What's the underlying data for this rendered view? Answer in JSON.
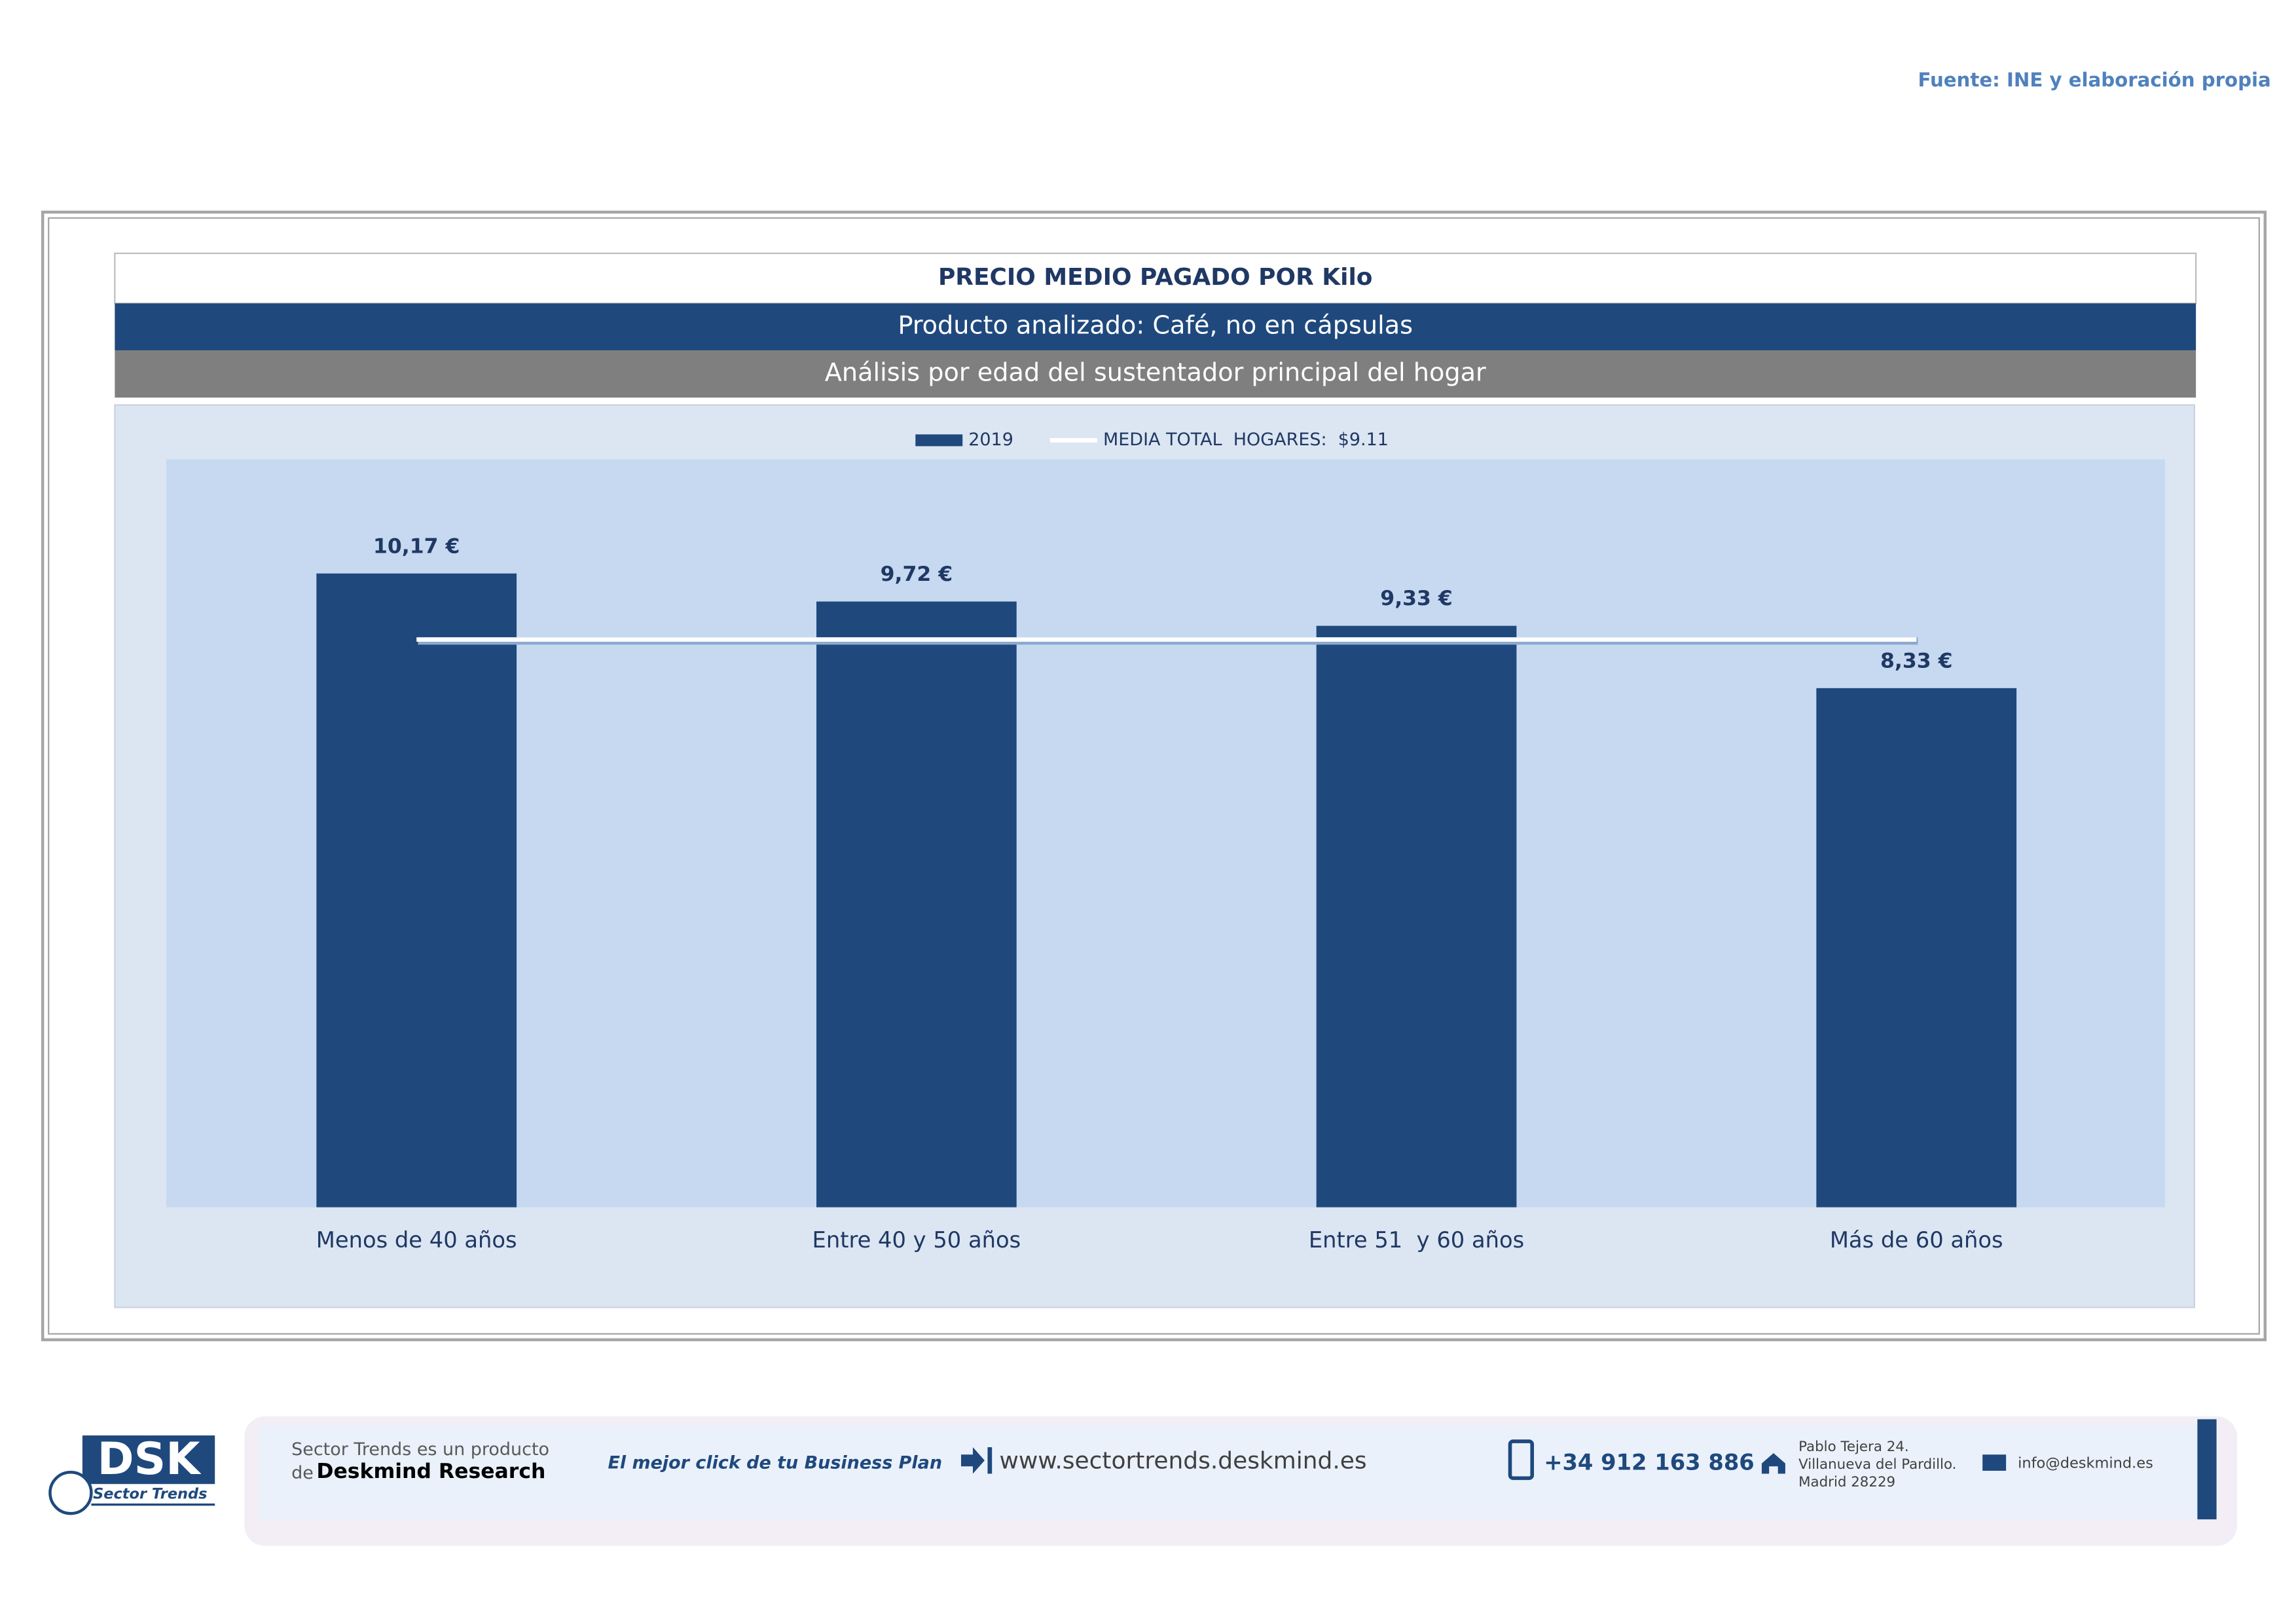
{
  "source": "Fuente: INE y elaboración propia",
  "chart_data": {
    "type": "bar",
    "title": "PRECIO MEDIO PAGADO POR Kilo",
    "subtitle": "Producto analizado: Café, no en cápsulas",
    "caption": "Análisis por edad del sustentador principal del hogar",
    "categories": [
      "Menos de 40 años",
      "Entre 40 y 50 años",
      "Entre 51  y 60 años",
      "Más de 60 años"
    ],
    "series": [
      {
        "name": "2019",
        "color": "#1f497d",
        "values": [
          10.17,
          9.72,
          9.33,
          8.33
        ],
        "value_labels": [
          "10,17 €",
          "9,72 €",
          "9,33 €",
          "8,33 €"
        ]
      },
      {
        "name": "MEDIA TOTAL  HOGARES:  $9.11",
        "type": "line",
        "color": "#ffffff",
        "values": [
          9.11,
          9.11,
          9.11,
          9.11
        ]
      }
    ],
    "ylim": [
      0,
      12
    ],
    "legend": "top"
  },
  "footer": {
    "logo": "DSK",
    "logo_caption": "Sector Trends",
    "product_line": "Sector Trends es un producto",
    "product_de": "de",
    "company": "Deskmind Research",
    "slogan": "El mejor click de tu Business Plan",
    "website": "www.sectortrends.deskmind.es",
    "phone": "+34 912 163 886",
    "address": [
      "Pablo Tejera 24.",
      "Villanueva del Pardillo.",
      "Madrid 28229"
    ],
    "email": "info@deskmind.es"
  }
}
